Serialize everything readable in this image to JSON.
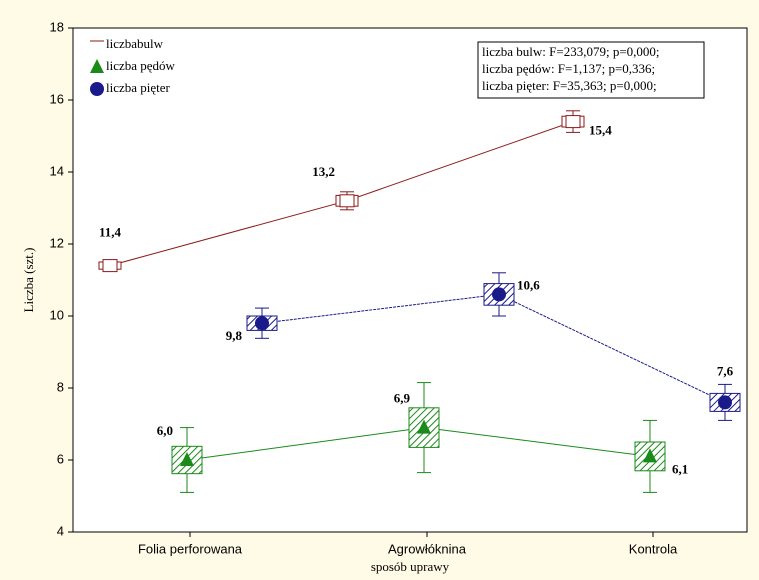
{
  "chart_data": {
    "type": "box-interaction",
    "y_label": "Liczba (szt.)",
    "x_label": "sposób uprawy",
    "categories": [
      "Folia perforowana",
      "Agrowłóknina",
      "Kontrola"
    ],
    "ylim": [
      4,
      18
    ],
    "yticks": [
      4,
      6,
      8,
      10,
      12,
      14,
      16,
      18
    ],
    "series": [
      {
        "name": "liczbabulw",
        "color": "#8b1a1a",
        "values": [
          11.4,
          13.2,
          15.4
        ],
        "value_labels": [
          "11,4",
          "13,2",
          "15,4"
        ],
        "box_err": [
          0.1,
          0.15,
          0.15
        ],
        "whisker_err": [
          0.12,
          0.25,
          0.3
        ]
      },
      {
        "name": "liczba pędów",
        "color": "#1a8a1a",
        "values": [
          6.0,
          6.9,
          6.1
        ],
        "value_labels": [
          "6,0",
          "6,9",
          "6,1"
        ],
        "box_err": [
          0.38,
          0.55,
          0.4
        ],
        "whisker_err": [
          0.9,
          1.25,
          1.0
        ]
      },
      {
        "name": "liczba pięter",
        "color": "#1a1a8a",
        "values": [
          9.8,
          10.6,
          7.6
        ],
        "value_labels": [
          "9,8",
          "10,6",
          "7,6"
        ],
        "box_err": [
          0.2,
          0.3,
          0.25
        ],
        "whisker_err": [
          0.42,
          0.6,
          0.5
        ]
      }
    ],
    "annotations": [
      "liczba bulw: F=233,079; p=0,000;",
      "liczba pędów: F=1,137; p=0,336;",
      "liczba pięter: F=35,363; p=0,000;"
    ]
  }
}
